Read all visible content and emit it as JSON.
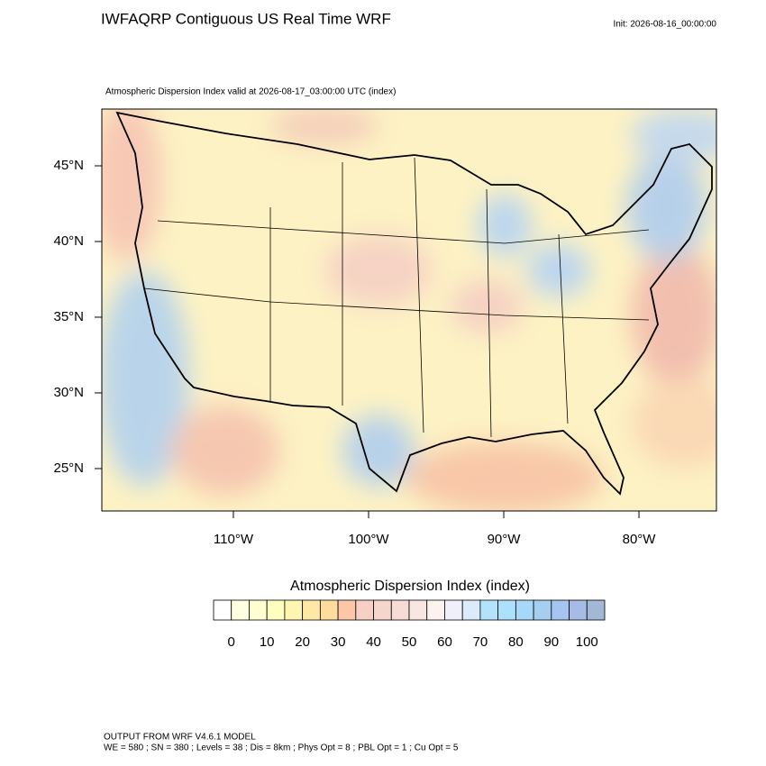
{
  "header": {
    "title": "IWFAQRP Contiguous US Real Time WRF",
    "init": "Init: 2026-08-16_00:00:00",
    "subtitle": "Atmospheric Dispersion Index valid at 2026-08-17_03:00:00 UTC   (index)"
  },
  "map": {
    "xlim": [
      -119.73,
      -74.27
    ],
    "ylim": [
      22.2,
      48.75
    ],
    "xticks": [
      {
        "value": -110,
        "label": "110°W"
      },
      {
        "value": -100,
        "label": "100°W"
      },
      {
        "value": -90,
        "label": "90°W"
      },
      {
        "value": -80,
        "label": "80°W"
      }
    ],
    "yticks": [
      {
        "value": 25,
        "label": "25°N"
      },
      {
        "value": 30,
        "label": "30°N"
      },
      {
        "value": 35,
        "label": "35°N"
      },
      {
        "value": 40,
        "label": "40°N"
      },
      {
        "value": 45,
        "label": "45°N"
      }
    ]
  },
  "colorbar": {
    "title": "Atmospheric Dispersion Index  (index)",
    "lim": [
      -5,
      105
    ],
    "ticks": [
      0,
      10,
      20,
      30,
      40,
      50,
      60,
      70,
      80,
      90,
      100
    ],
    "colors": [
      "#ffffff",
      "#fefee0",
      "#fefed0",
      "#fefebe",
      "#fef5b0",
      "#fee9a4",
      "#fedc9e",
      "#fcc7a8",
      "#f6d0c4",
      "#f5d6cc",
      "#f6dcd4",
      "#f8e6e0",
      "#fcf2f0",
      "#f0f0fa",
      "#dcebfa",
      "#b4e2fb",
      "#ade0fa",
      "#a8d8f8",
      "#a6ceee",
      "#a6c4f0",
      "#a6bce4",
      "#a2b8d4"
    ]
  },
  "footer": {
    "line1": "OUTPUT FROM WRF V4.6.1 MODEL",
    "line2": "WE = 580 ; SN = 380 ; Levels = 38 ; Dis = 8km ; Phys Opt = 8 ; PBL Opt = 1 ; Cu Opt = 5"
  }
}
